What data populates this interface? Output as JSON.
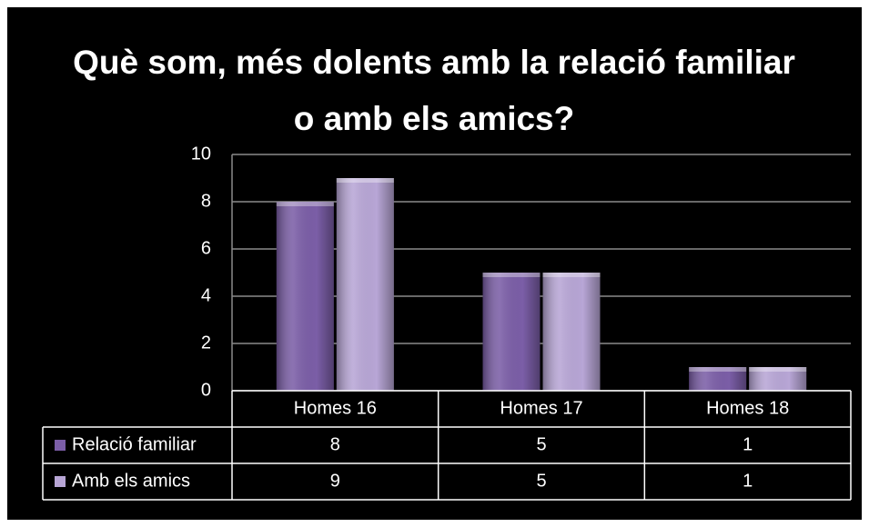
{
  "chart_data": {
    "type": "bar",
    "title": "Què som, més dolents amb la relació familiar o amb els amics?",
    "categories": [
      "Homes 16",
      "Homes 17",
      "Homes 18"
    ],
    "series": [
      {
        "name": "Relació familiar",
        "color": "#7b5ea7",
        "values": [
          8,
          5,
          1
        ]
      },
      {
        "name": "Amb els amics",
        "color": "#b8a6d6",
        "values": [
          9,
          5,
          1
        ]
      }
    ],
    "ylim": [
      0,
      10
    ],
    "yticks": [
      0,
      2,
      4,
      6,
      8,
      10
    ],
    "grid": true,
    "data_table": true
  }
}
